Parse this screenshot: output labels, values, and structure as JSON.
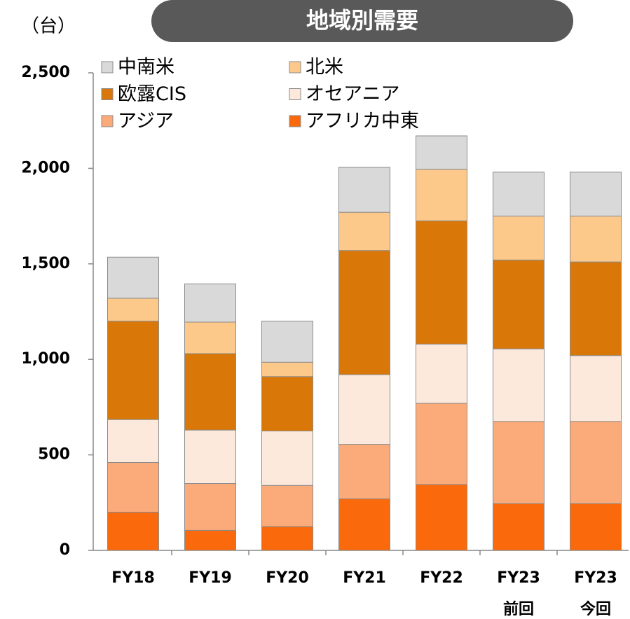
{
  "chart_data": {
    "type": "stacked_bar",
    "title": "地域別需要",
    "y_label": "（台）",
    "categories": [
      "FY18",
      "FY19",
      "FY20",
      "FY21",
      "FY22",
      "FY23\n前回",
      "FY23\n今回"
    ],
    "series": [
      {
        "name": "アフリカ中東",
        "color": "#fa6a0c",
        "values": [
          200,
          105,
          125,
          270,
          345,
          245,
          245
        ]
      },
      {
        "name": "アジア",
        "color": "#fbab79",
        "values": [
          260,
          245,
          215,
          285,
          425,
          430,
          430
        ]
      },
      {
        "name": "オセアニア",
        "color": "#fde9dc",
        "values": [
          225,
          280,
          285,
          365,
          310,
          380,
          345
        ]
      },
      {
        "name": "欧露CIS",
        "color": "#d97808",
        "values": [
          515,
          400,
          285,
          650,
          645,
          465,
          490
        ]
      },
      {
        "name": "北米",
        "color": "#fdc98b",
        "values": [
          120,
          165,
          75,
          200,
          270,
          230,
          240
        ]
      },
      {
        "name": "中南米",
        "color": "#d9d9d9",
        "values": [
          215,
          200,
          215,
          235,
          175,
          230,
          230
        ]
      }
    ],
    "ylim": [
      0,
      2500
    ],
    "yticks": [
      0,
      500,
      {
        "value": 1000,
        "label": "1,000"
      },
      {
        "value": 1500,
        "label": "1,500"
      },
      {
        "value": 2000,
        "label": "2,000"
      },
      {
        "value": 2500,
        "label": "2,500"
      }
    ],
    "grid": false
  }
}
